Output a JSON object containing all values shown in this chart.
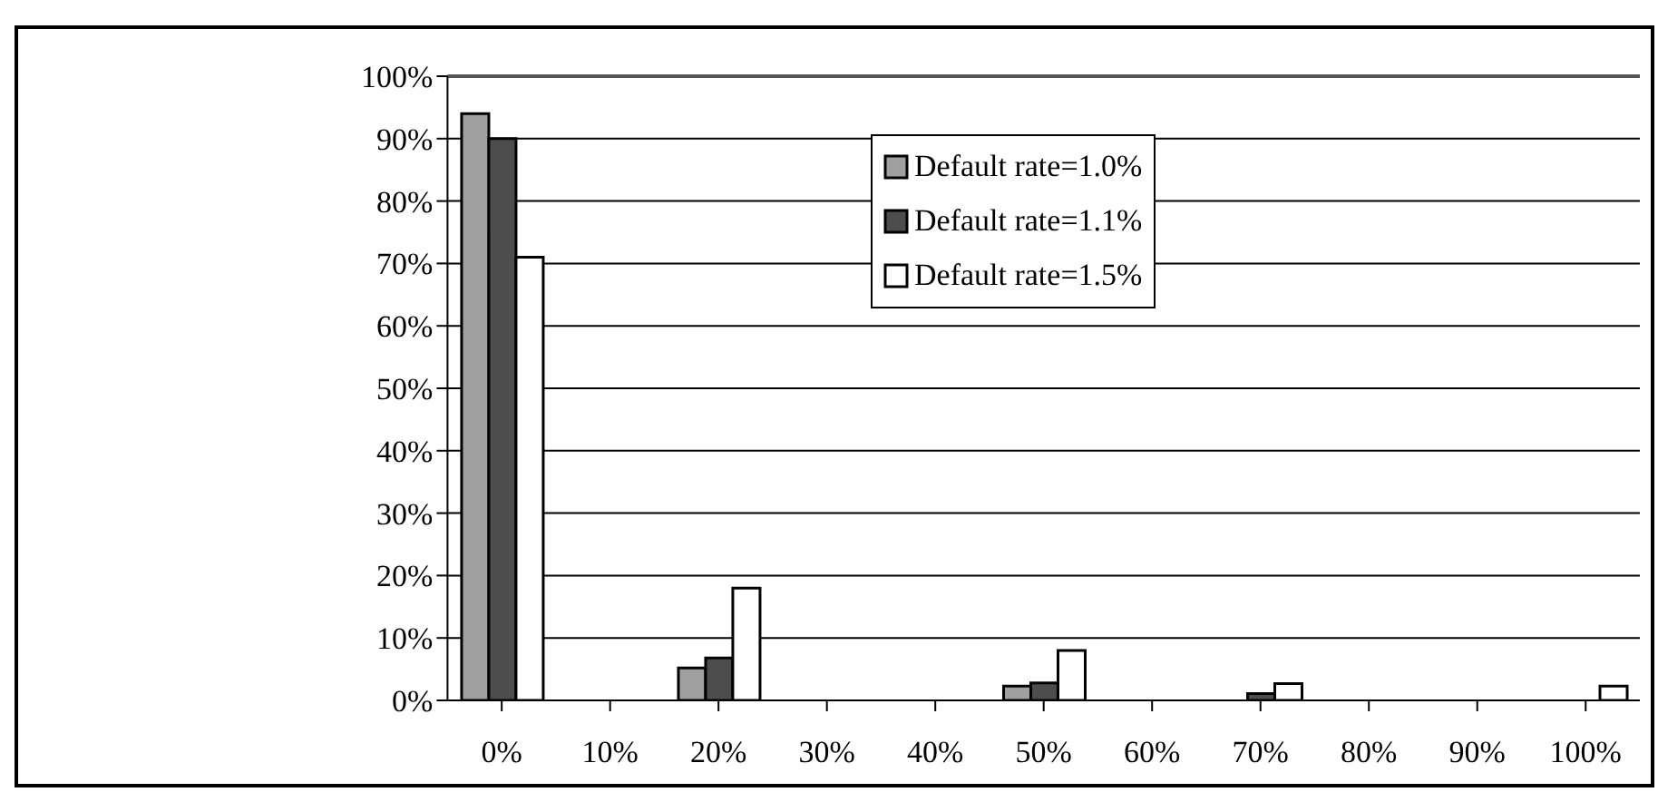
{
  "chart_data": {
    "type": "bar",
    "categories": [
      "0%",
      "10%",
      "20%",
      "30%",
      "40%",
      "50%",
      "60%",
      "70%",
      "80%",
      "90%",
      "100%"
    ],
    "series": [
      {
        "name": "Default rate=1.0%",
        "color": "#a0a0a0",
        "values": [
          94,
          0,
          5.2,
          0,
          0,
          2.3,
          0,
          0,
          0,
          0,
          0
        ]
      },
      {
        "name": "Default rate=1.1%",
        "color": "#4d4d4d",
        "values": [
          90,
          0,
          6.8,
          0,
          0,
          2.8,
          0,
          1.1,
          0,
          0,
          0
        ]
      },
      {
        "name": "Default rate=1.5%",
        "color": "#ffffff",
        "values": [
          71,
          0,
          18,
          0,
          0,
          8,
          0,
          2.7,
          0,
          0,
          2.3
        ]
      }
    ],
    "ylim": [
      0,
      100
    ],
    "yticks": [
      {
        "value": 0,
        "label": "0%"
      },
      {
        "value": 10,
        "label": "10%"
      },
      {
        "value": 20,
        "label": "20%"
      },
      {
        "value": 30,
        "label": "30%"
      },
      {
        "value": 40,
        "label": "40%"
      },
      {
        "value": 50,
        "label": "50%"
      },
      {
        "value": 60,
        "label": "60%"
      },
      {
        "value": 70,
        "label": "70%"
      },
      {
        "value": 80,
        "label": "80%"
      },
      {
        "value": 90,
        "label": "90%"
      },
      {
        "value": 100,
        "label": "100%"
      }
    ],
    "grid": "y",
    "legend": "top"
  }
}
